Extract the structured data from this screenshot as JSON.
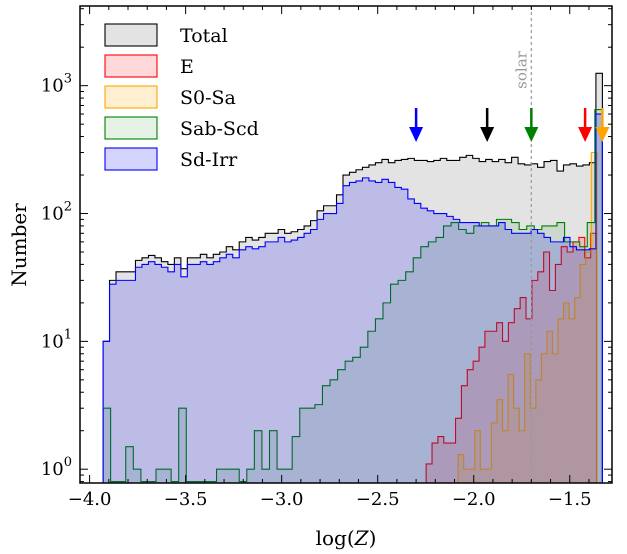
{
  "chart_data": {
    "type": "histogram",
    "xlabel": "log(Z)",
    "ylabel": "Number",
    "xlim": [
      -4.05,
      -1.28
    ],
    "ylim": [
      0.78,
      4200
    ],
    "yscale": "log",
    "bin_edges_start": -3.93,
    "bin_width": 0.0333,
    "x_ticks": [
      {
        "value": -4.0,
        "label": "−4.0"
      },
      {
        "value": -3.5,
        "label": "−3.5"
      },
      {
        "value": -3.0,
        "label": "−3.0"
      },
      {
        "value": -2.5,
        "label": "−2.5"
      },
      {
        "value": -2.0,
        "label": "−2.0"
      },
      {
        "value": -1.5,
        "label": "−1.5"
      }
    ],
    "y_ticks": [
      {
        "value": 1,
        "base": "10",
        "exp": "0"
      },
      {
        "value": 10,
        "base": "10",
        "exp": "1"
      },
      {
        "value": 100,
        "base": "10",
        "exp": "2"
      },
      {
        "value": 1000,
        "base": "10",
        "exp": "3"
      }
    ],
    "legend_position": "top-left",
    "series": [
      {
        "name": "Total",
        "color": "#000000",
        "fill": "#e3e3e3",
        "fill_opacity": 1,
        "values": [
          10,
          30,
          35,
          35,
          35,
          43,
          45,
          47,
          45,
          42,
          40,
          45,
          37,
          45,
          45,
          48,
          45,
          48,
          50,
          55,
          52,
          60,
          65,
          62,
          65,
          70,
          70,
          75,
          70,
          72,
          75,
          80,
          88,
          105,
          115,
          115,
          140,
          200,
          210,
          220,
          230,
          240,
          250,
          265,
          250,
          260,
          265,
          270,
          260,
          260,
          255,
          260,
          270,
          260,
          260,
          275,
          285,
          270,
          255,
          265,
          255,
          265,
          250,
          275,
          245,
          240,
          245,
          230,
          255,
          260,
          215,
          240,
          245,
          235,
          240,
          250,
          1250
        ]
      },
      {
        "name": "E",
        "color": "#ff0000",
        "fill": "#ff0000",
        "fill_opacity": 0.15,
        "values": [
          0,
          0,
          0,
          0,
          0,
          0,
          0,
          0,
          0,
          0,
          0,
          0,
          0,
          0,
          0,
          0,
          0,
          0,
          0,
          0,
          0,
          0,
          0,
          0,
          0,
          0,
          0,
          0,
          0,
          0,
          0,
          0,
          0,
          0,
          0,
          0,
          0,
          0,
          0,
          0,
          0,
          0,
          0,
          0,
          0,
          0,
          0,
          0,
          0,
          0,
          0,
          0,
          0,
          0,
          0,
          1.1,
          1.6,
          1.8,
          1.6,
          1.6,
          2.5,
          4.5,
          6,
          7,
          9,
          12,
          12,
          14,
          10,
          14,
          18,
          22,
          15,
          30,
          35,
          50,
          25,
          40,
          55,
          50,
          60,
          65,
          45,
          70,
          0
        ]
      },
      {
        "name": "S0-Sa",
        "color": "#ffa500",
        "fill": "#ffa500",
        "fill_opacity": 0.18,
        "values": [
          0,
          0,
          0,
          0,
          0,
          0,
          0,
          0,
          0,
          0,
          0,
          0,
          0,
          0,
          0,
          0,
          0,
          0,
          0,
          0,
          0,
          0,
          0,
          0,
          0,
          0,
          0,
          0,
          0,
          0,
          0,
          0,
          0,
          0,
          0,
          0,
          0,
          0,
          0,
          0,
          0,
          0,
          0,
          0,
          0,
          0,
          0,
          0,
          0,
          0,
          0,
          0,
          0,
          0,
          0,
          0,
          0,
          0,
          0,
          0,
          0,
          0,
          0,
          0,
          1.3,
          1,
          1,
          2,
          1,
          1,
          2.3,
          3.5,
          2,
          5.5,
          3,
          2,
          8,
          3,
          5,
          8,
          12,
          8,
          15,
          20,
          15,
          22,
          40,
          50,
          300,
          0
        ]
      },
      {
        "name": "Sab-Scd",
        "color": "#008000",
        "fill": "#008000",
        "fill_opacity": 0.1,
        "values": [
          3,
          0.8,
          0.8,
          1.5,
          1,
          0.8,
          0.8,
          1,
          1,
          0.8,
          3,
          0.8,
          0.8,
          0.8,
          0.8,
          1,
          1,
          1,
          0.8,
          1,
          2,
          1,
          2,
          1,
          1,
          1.8,
          3,
          3,
          3.2,
          4.5,
          5,
          6,
          7,
          7.5,
          9,
          12,
          15,
          20,
          28,
          30,
          35,
          45,
          55,
          60,
          65,
          80,
          85,
          75,
          70,
          80,
          85,
          80,
          90,
          90,
          85,
          75,
          80,
          75,
          80,
          80,
          85,
          60,
          60,
          55,
          85,
          650
        ]
      },
      {
        "name": "Sd-Irr",
        "color": "#0000ff",
        "fill": "#0000ff",
        "fill_opacity": 0.17,
        "values": [
          10,
          28,
          30,
          30,
          30,
          38,
          40,
          42,
          40,
          38,
          35,
          40,
          32,
          40,
          40,
          42,
          40,
          42,
          45,
          48,
          45,
          52,
          55,
          53,
          55,
          60,
          60,
          65,
          60,
          62,
          65,
          70,
          75,
          90,
          100,
          100,
          120,
          165,
          175,
          180,
          190,
          180,
          175,
          185,
          175,
          160,
          155,
          130,
          120,
          110,
          105,
          100,
          100,
          95,
          90,
          85,
          85,
          85,
          80,
          80,
          80,
          85,
          75,
          70,
          70,
          70,
          75,
          70,
          65,
          60,
          60,
          65,
          55,
          52,
          52,
          53,
          600
        ]
      }
    ],
    "annotations": {
      "solar_line": {
        "x": -1.7,
        "label": "solar",
        "color": "#999999"
      },
      "arrows": [
        {
          "x": -2.3,
          "color": "#0000ff"
        },
        {
          "x": -1.93,
          "color": "#000000"
        },
        {
          "x": -1.7,
          "color": "#008000"
        },
        {
          "x": -1.42,
          "color": "#ff0000"
        },
        {
          "x": -1.33,
          "color": "#ffa500"
        }
      ]
    }
  }
}
